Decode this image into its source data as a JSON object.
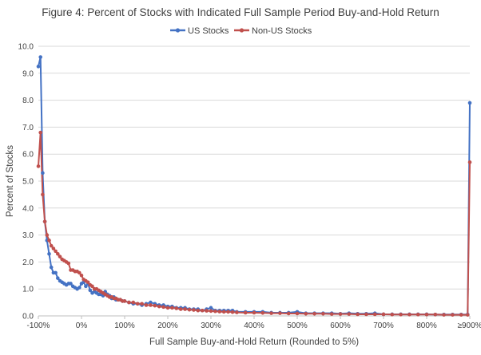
{
  "chart_data": {
    "type": "line",
    "title": "Figure 4: Percent of Stocks with Indicated Full Sample Period Buy-and-Hold Return",
    "xlabel": "Full Sample Buy-and-Hold Return (Rounded to 5%)",
    "ylabel": "Percent of Stocks",
    "xlim": [
      -100,
      900
    ],
    "ylim": [
      0,
      10
    ],
    "x_tick_labels": [
      {
        "value": -100,
        "label": "-100%"
      },
      {
        "value": 0,
        "label": "0%"
      },
      {
        "value": 100,
        "label": "100%"
      },
      {
        "value": 200,
        "label": "200%"
      },
      {
        "value": 300,
        "label": "300%"
      },
      {
        "value": 400,
        "label": "400%"
      },
      {
        "value": 500,
        "label": "500%"
      },
      {
        "value": 600,
        "label": "600%"
      },
      {
        "value": 700,
        "label": "700%"
      },
      {
        "value": 800,
        "label": "800%"
      },
      {
        "value": 900,
        "label": "≥900%"
      }
    ],
    "y_ticks": [
      {
        "value": 0,
        "label": "0.0"
      },
      {
        "value": 1,
        "label": "1.0"
      },
      {
        "value": 2,
        "label": "2.0"
      },
      {
        "value": 3,
        "label": "3.0"
      },
      {
        "value": 4,
        "label": "4.0"
      },
      {
        "value": 5,
        "label": "5.0"
      },
      {
        "value": 6,
        "label": "6.0"
      },
      {
        "value": 7,
        "label": "7.0"
      },
      {
        "value": 8,
        "label": "8.0"
      },
      {
        "value": 9,
        "label": "9.0"
      },
      {
        "value": 10,
        "label": "10.0"
      }
    ],
    "grid": "horizontal",
    "legend_position": "top",
    "series": [
      {
        "name": "US Stocks",
        "color": "#4472c4",
        "points": [
          [
            -100,
            9.25
          ],
          [
            -95,
            9.6
          ],
          [
            -90,
            5.3
          ],
          [
            -85,
            3.5
          ],
          [
            -80,
            2.8
          ],
          [
            -75,
            2.3
          ],
          [
            -70,
            1.8
          ],
          [
            -65,
            1.6
          ],
          [
            -60,
            1.6
          ],
          [
            -55,
            1.4
          ],
          [
            -50,
            1.3
          ],
          [
            -45,
            1.25
          ],
          [
            -40,
            1.2
          ],
          [
            -35,
            1.15
          ],
          [
            -30,
            1.2
          ],
          [
            -25,
            1.2
          ],
          [
            -20,
            1.1
          ],
          [
            -15,
            1.05
          ],
          [
            -10,
            1.0
          ],
          [
            -5,
            1.05
          ],
          [
            0,
            1.2
          ],
          [
            5,
            1.25
          ],
          [
            10,
            1.1
          ],
          [
            15,
            1.2
          ],
          [
            20,
            0.95
          ],
          [
            25,
            0.85
          ],
          [
            30,
            0.9
          ],
          [
            35,
            0.85
          ],
          [
            40,
            0.8
          ],
          [
            45,
            0.8
          ],
          [
            50,
            0.75
          ],
          [
            55,
            0.9
          ],
          [
            60,
            0.8
          ],
          [
            65,
            0.75
          ],
          [
            70,
            0.65
          ],
          [
            75,
            0.7
          ],
          [
            80,
            0.6
          ],
          [
            85,
            0.6
          ],
          [
            90,
            0.6
          ],
          [
            95,
            0.55
          ],
          [
            100,
            0.55
          ],
          [
            110,
            0.5
          ],
          [
            120,
            0.45
          ],
          [
            130,
            0.45
          ],
          [
            140,
            0.4
          ],
          [
            150,
            0.45
          ],
          [
            160,
            0.5
          ],
          [
            170,
            0.45
          ],
          [
            180,
            0.4
          ],
          [
            190,
            0.4
          ],
          [
            200,
            0.35
          ],
          [
            210,
            0.35
          ],
          [
            220,
            0.3
          ],
          [
            230,
            0.3
          ],
          [
            240,
            0.3
          ],
          [
            250,
            0.25
          ],
          [
            260,
            0.25
          ],
          [
            270,
            0.25
          ],
          [
            280,
            0.2
          ],
          [
            290,
            0.25
          ],
          [
            300,
            0.3
          ],
          [
            310,
            0.2
          ],
          [
            320,
            0.2
          ],
          [
            330,
            0.2
          ],
          [
            340,
            0.2
          ],
          [
            350,
            0.2
          ],
          [
            360,
            0.15
          ],
          [
            380,
            0.15
          ],
          [
            400,
            0.15
          ],
          [
            420,
            0.15
          ],
          [
            440,
            0.12
          ],
          [
            460,
            0.12
          ],
          [
            480,
            0.12
          ],
          [
            500,
            0.15
          ],
          [
            520,
            0.1
          ],
          [
            540,
            0.1
          ],
          [
            560,
            0.1
          ],
          [
            580,
            0.1
          ],
          [
            600,
            0.08
          ],
          [
            620,
            0.1
          ],
          [
            640,
            0.08
          ],
          [
            660,
            0.08
          ],
          [
            680,
            0.1
          ],
          [
            700,
            0.06
          ],
          [
            720,
            0.06
          ],
          [
            740,
            0.06
          ],
          [
            760,
            0.06
          ],
          [
            780,
            0.06
          ],
          [
            800,
            0.06
          ],
          [
            820,
            0.05
          ],
          [
            840,
            0.05
          ],
          [
            860,
            0.05
          ],
          [
            880,
            0.05
          ],
          [
            895,
            0.05
          ],
          [
            900,
            7.9
          ]
        ]
      },
      {
        "name": "Non-US Stocks",
        "color": "#c0504d",
        "points": [
          [
            -100,
            5.55
          ],
          [
            -95,
            6.8
          ],
          [
            -90,
            4.5
          ],
          [
            -85,
            3.5
          ],
          [
            -80,
            3.0
          ],
          [
            -75,
            2.8
          ],
          [
            -70,
            2.6
          ],
          [
            -65,
            2.5
          ],
          [
            -60,
            2.4
          ],
          [
            -55,
            2.3
          ],
          [
            -50,
            2.2
          ],
          [
            -45,
            2.1
          ],
          [
            -40,
            2.05
          ],
          [
            -35,
            2.0
          ],
          [
            -30,
            1.95
          ],
          [
            -25,
            1.7
          ],
          [
            -20,
            1.7
          ],
          [
            -15,
            1.65
          ],
          [
            -10,
            1.65
          ],
          [
            -5,
            1.6
          ],
          [
            0,
            1.5
          ],
          [
            5,
            1.35
          ],
          [
            10,
            1.3
          ],
          [
            15,
            1.25
          ],
          [
            20,
            1.15
          ],
          [
            25,
            1.1
          ],
          [
            30,
            1.0
          ],
          [
            35,
            1.0
          ],
          [
            40,
            0.95
          ],
          [
            45,
            0.9
          ],
          [
            50,
            0.85
          ],
          [
            55,
            0.8
          ],
          [
            60,
            0.75
          ],
          [
            65,
            0.7
          ],
          [
            70,
            0.7
          ],
          [
            75,
            0.65
          ],
          [
            80,
            0.65
          ],
          [
            85,
            0.6
          ],
          [
            90,
            0.6
          ],
          [
            95,
            0.55
          ],
          [
            100,
            0.55
          ],
          [
            110,
            0.5
          ],
          [
            120,
            0.5
          ],
          [
            130,
            0.45
          ],
          [
            140,
            0.45
          ],
          [
            150,
            0.4
          ],
          [
            160,
            0.4
          ],
          [
            170,
            0.38
          ],
          [
            180,
            0.35
          ],
          [
            190,
            0.33
          ],
          [
            200,
            0.3
          ],
          [
            210,
            0.3
          ],
          [
            220,
            0.28
          ],
          [
            230,
            0.25
          ],
          [
            240,
            0.25
          ],
          [
            250,
            0.23
          ],
          [
            260,
            0.22
          ],
          [
            270,
            0.2
          ],
          [
            280,
            0.2
          ],
          [
            290,
            0.19
          ],
          [
            300,
            0.18
          ],
          [
            310,
            0.17
          ],
          [
            320,
            0.16
          ],
          [
            330,
            0.15
          ],
          [
            340,
            0.15
          ],
          [
            350,
            0.14
          ],
          [
            360,
            0.13
          ],
          [
            380,
            0.12
          ],
          [
            400,
            0.12
          ],
          [
            420,
            0.11
          ],
          [
            440,
            0.1
          ],
          [
            460,
            0.1
          ],
          [
            480,
            0.09
          ],
          [
            500,
            0.09
          ],
          [
            520,
            0.08
          ],
          [
            540,
            0.08
          ],
          [
            560,
            0.08
          ],
          [
            580,
            0.07
          ],
          [
            600,
            0.07
          ],
          [
            620,
            0.07
          ],
          [
            640,
            0.06
          ],
          [
            660,
            0.06
          ],
          [
            680,
            0.06
          ],
          [
            700,
            0.06
          ],
          [
            720,
            0.05
          ],
          [
            740,
            0.05
          ],
          [
            760,
            0.05
          ],
          [
            780,
            0.05
          ],
          [
            800,
            0.05
          ],
          [
            820,
            0.05
          ],
          [
            840,
            0.04
          ],
          [
            860,
            0.04
          ],
          [
            880,
            0.04
          ],
          [
            895,
            0.04
          ],
          [
            900,
            5.7
          ]
        ]
      }
    ]
  }
}
